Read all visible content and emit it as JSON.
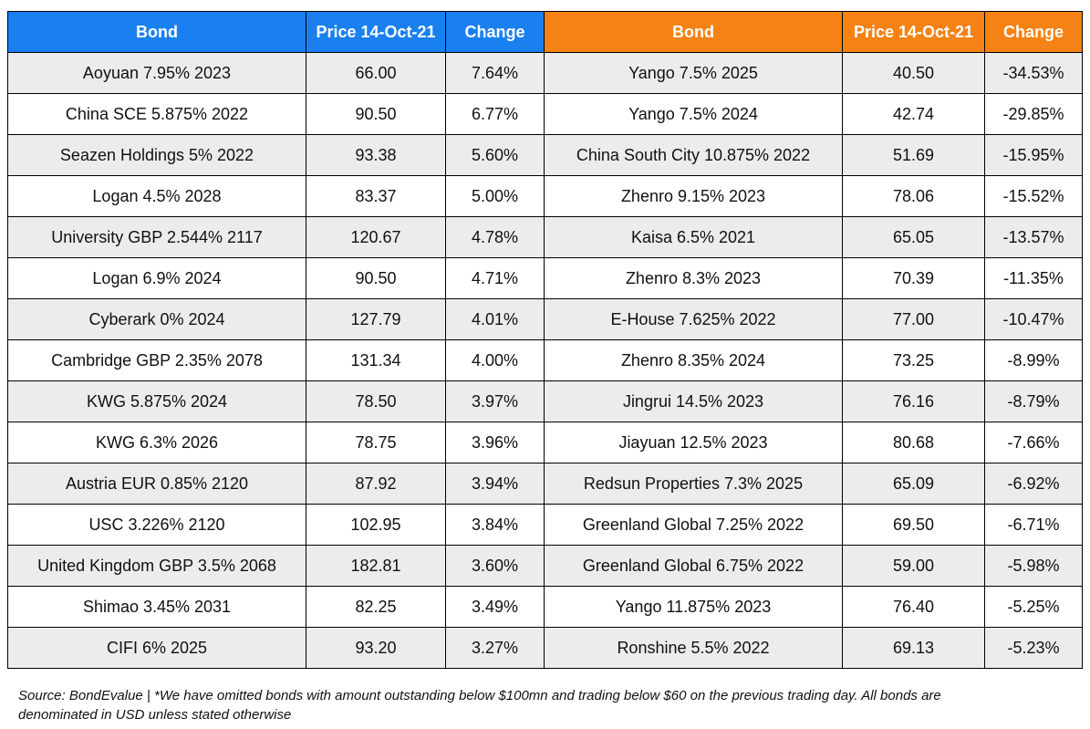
{
  "header": {
    "bond_label": "Bond",
    "price_label": "Price 14-Oct-21",
    "change_label": "Change"
  },
  "colors": {
    "gainers_header": "#1a80f0",
    "losers_header": "#f58214",
    "row_shade": "#ececec",
    "row_plain": "#ffffff"
  },
  "gainers": [
    {
      "bond": "Aoyuan 7.95% 2023",
      "price": "66.00",
      "change": "7.64%"
    },
    {
      "bond": "China SCE 5.875% 2022",
      "price": "90.50",
      "change": "6.77%"
    },
    {
      "bond": "Seazen Holdings 5% 2022",
      "price": "93.38",
      "change": "5.60%"
    },
    {
      "bond": "Logan 4.5% 2028",
      "price": "83.37",
      "change": "5.00%"
    },
    {
      "bond": "University GBP 2.544% 2117",
      "price": "120.67",
      "change": "4.78%"
    },
    {
      "bond": "Logan 6.9% 2024",
      "price": "90.50",
      "change": "4.71%"
    },
    {
      "bond": "Cyberark 0% 2024",
      "price": "127.79",
      "change": "4.01%"
    },
    {
      "bond": "Cambridge GBP 2.35% 2078",
      "price": "131.34",
      "change": "4.00%"
    },
    {
      "bond": "KWG 5.875% 2024",
      "price": "78.50",
      "change": "3.97%"
    },
    {
      "bond": "KWG 6.3% 2026",
      "price": "78.75",
      "change": "3.96%"
    },
    {
      "bond": "Austria EUR 0.85% 2120",
      "price": "87.92",
      "change": "3.94%"
    },
    {
      "bond": "USC 3.226% 2120",
      "price": "102.95",
      "change": "3.84%"
    },
    {
      "bond": "United Kingdom GBP 3.5% 2068",
      "price": "182.81",
      "change": "3.60%"
    },
    {
      "bond": "Shimao 3.45% 2031",
      "price": "82.25",
      "change": "3.49%"
    },
    {
      "bond": "CIFI 6% 2025",
      "price": "93.20",
      "change": "3.27%"
    }
  ],
  "losers": [
    {
      "bond": "Yango 7.5% 2025",
      "price": "40.50",
      "change": "-34.53%"
    },
    {
      "bond": "Yango 7.5% 2024",
      "price": "42.74",
      "change": "-29.85%"
    },
    {
      "bond": "China South City 10.875% 2022",
      "price": "51.69",
      "change": "-15.95%"
    },
    {
      "bond": "Zhenro 9.15% 2023",
      "price": "78.06",
      "change": "-15.52%"
    },
    {
      "bond": "Kaisa 6.5% 2021",
      "price": "65.05",
      "change": "-13.57%"
    },
    {
      "bond": "Zhenro 8.3% 2023",
      "price": "70.39",
      "change": "-11.35%"
    },
    {
      "bond": "E-House 7.625% 2022",
      "price": "77.00",
      "change": "-10.47%"
    },
    {
      "bond": "Zhenro 8.35% 2024",
      "price": "73.25",
      "change": "-8.99%"
    },
    {
      "bond": "Jingrui 14.5% 2023",
      "price": "76.16",
      "change": "-8.79%"
    },
    {
      "bond": "Jiayuan 12.5% 2023",
      "price": "80.68",
      "change": "-7.66%"
    },
    {
      "bond": "Redsun Properties 7.3% 2025",
      "price": "65.09",
      "change": "-6.92%"
    },
    {
      "bond": "Greenland Global 7.25% 2022",
      "price": "69.50",
      "change": "-6.71%"
    },
    {
      "bond": "Greenland Global 6.75% 2022",
      "price": "59.00",
      "change": "-5.98%"
    },
    {
      "bond": "Yango 11.875% 2023",
      "price": "76.40",
      "change": "-5.25%"
    },
    {
      "bond": "Ronshine 5.5% 2022",
      "price": "69.13",
      "change": "-5.23%"
    }
  ],
  "footnote": {
    "line1": "Source: BondEvalue | *We have omitted bonds with amount outstanding below $100mn and trading below $60 on the previous trading day. All bonds are",
    "line2": "denominated in USD unless stated otherwise"
  }
}
